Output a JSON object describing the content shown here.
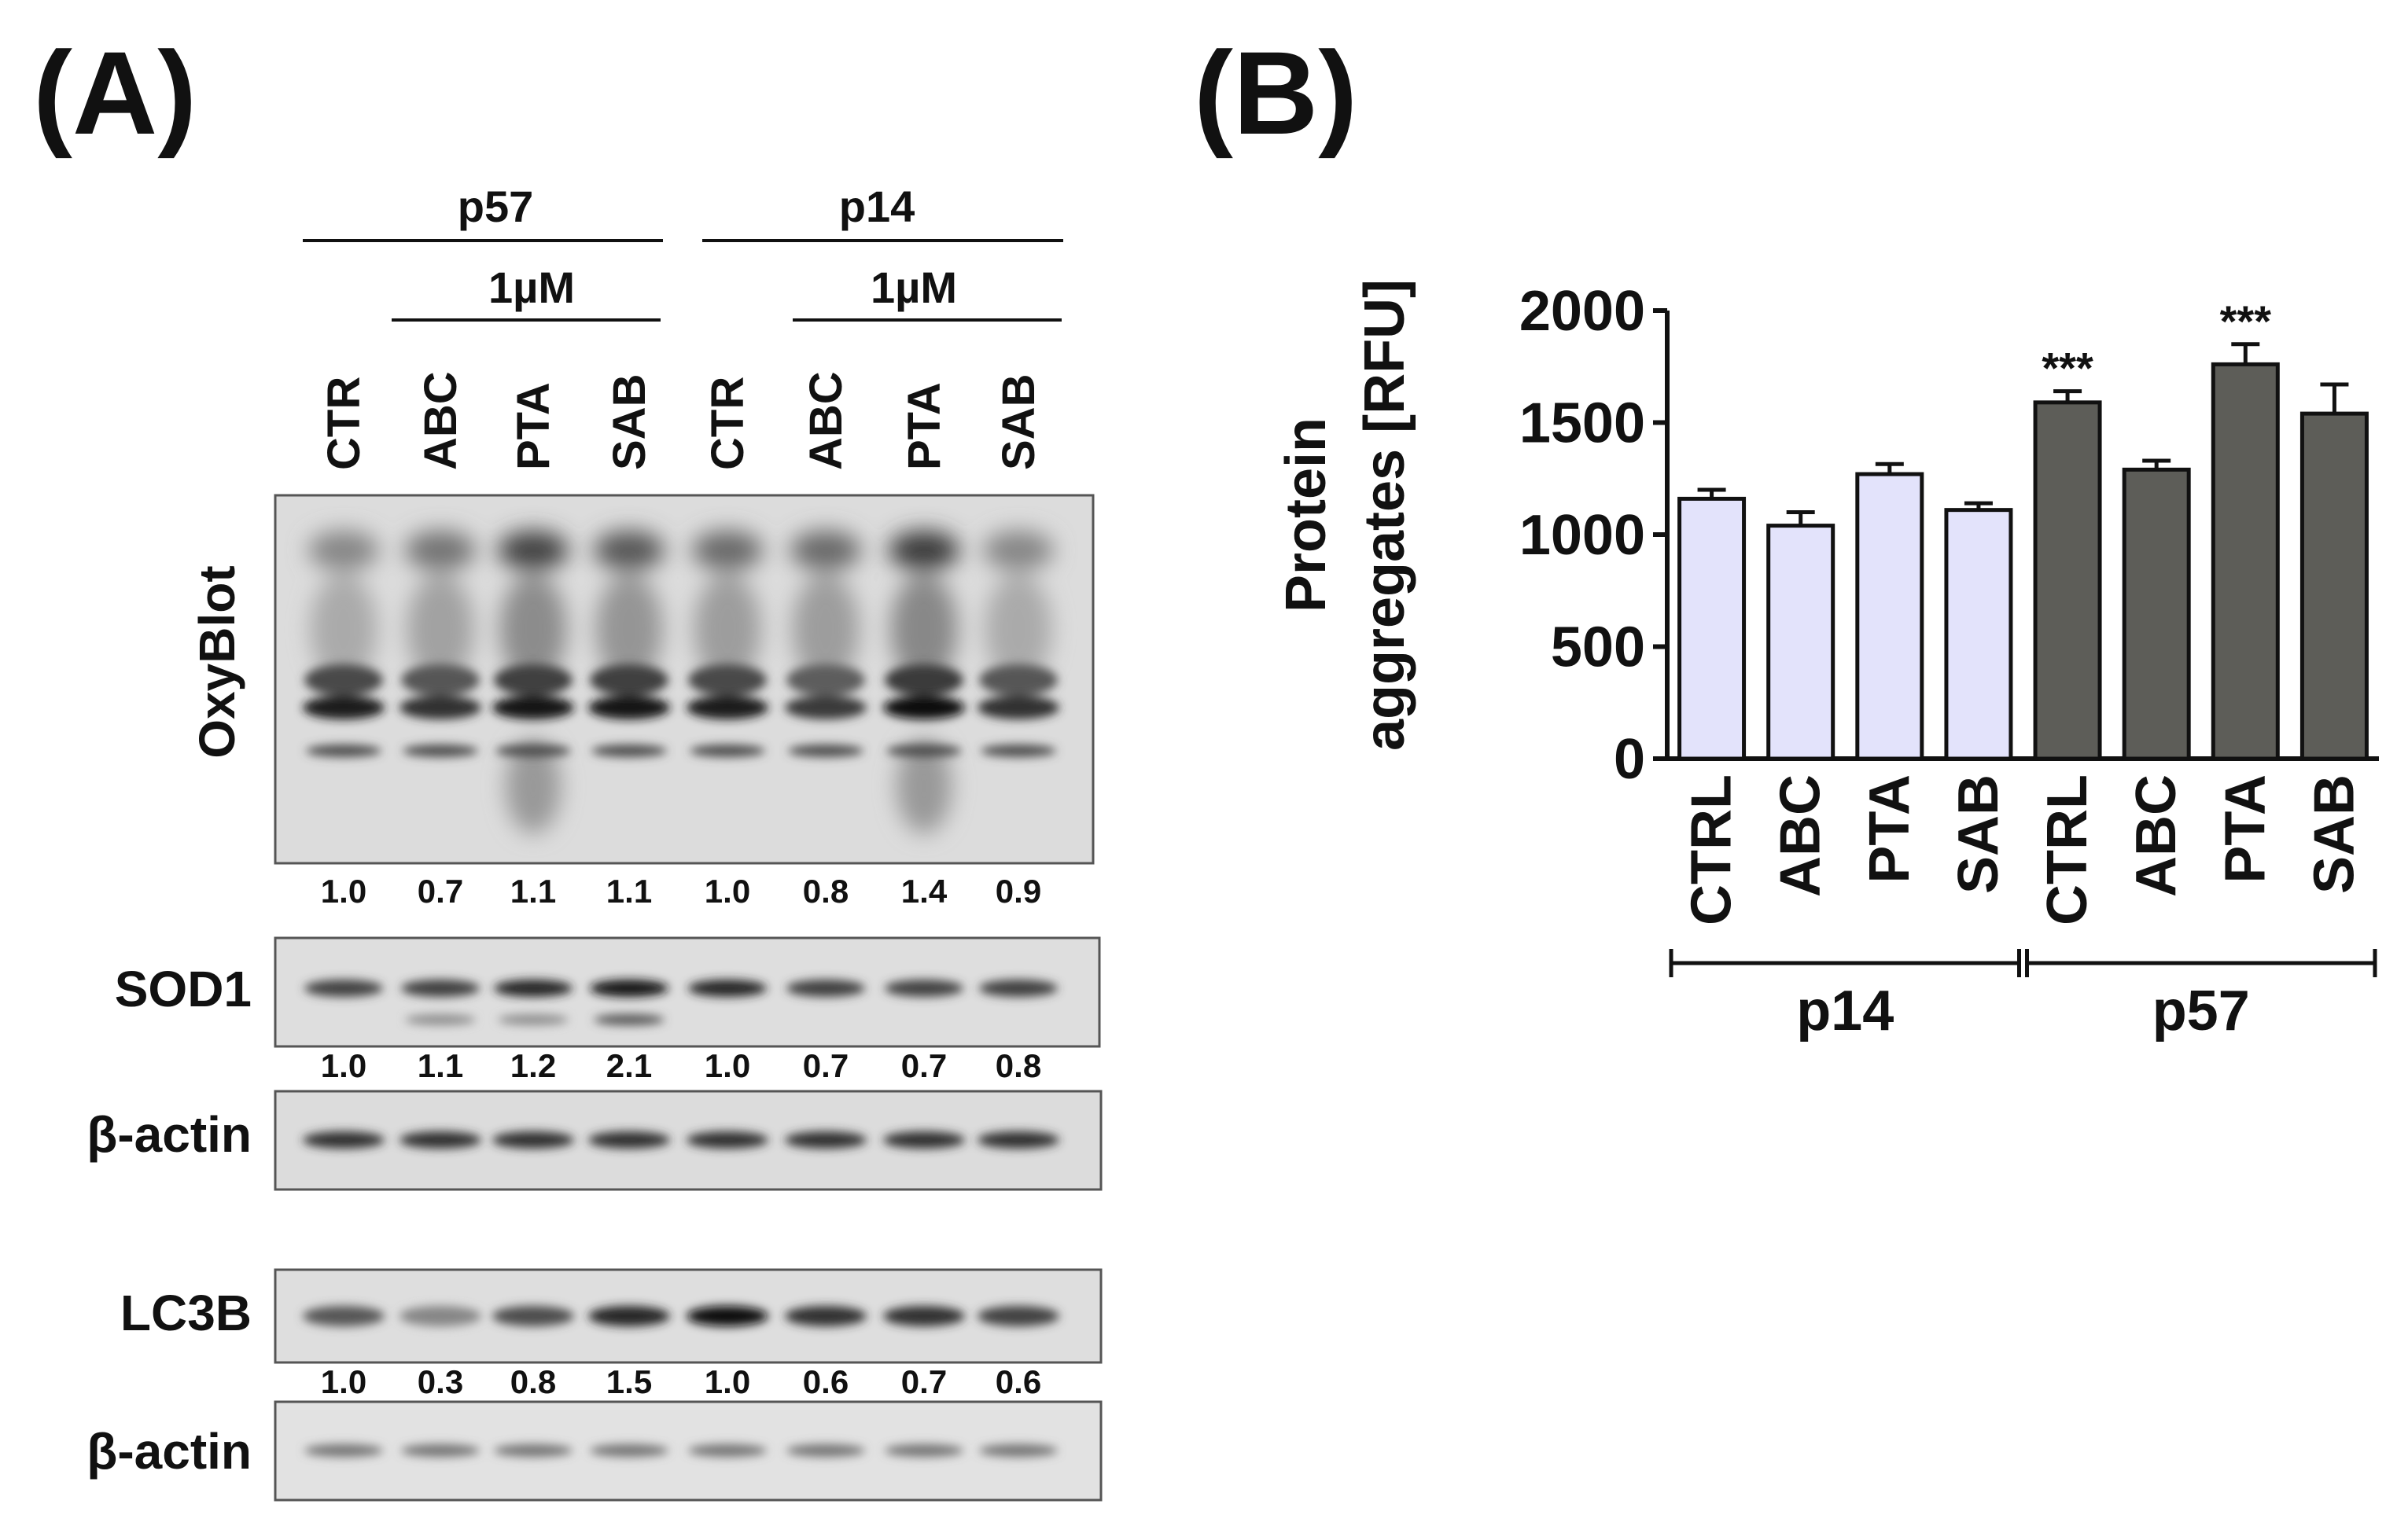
{
  "panel_a": {
    "letter": "(A)",
    "group_headers": [
      "p57",
      "p14"
    ],
    "dose_label": "1µM",
    "lanes": [
      "CTR",
      "ABC",
      "PTA",
      "SAB",
      "CTR",
      "ABC",
      "PTA",
      "SAB"
    ],
    "blots": [
      {
        "label": "OxyBlot",
        "quant": [
          "1.0",
          "0.7",
          "1.1",
          "1.1",
          "1.0",
          "0.8",
          "1.4",
          "0.9"
        ]
      },
      {
        "label": "SOD1",
        "quant": [
          "1.0",
          "1.1",
          "1.2",
          "2.1",
          "1.0",
          "0.7",
          "0.7",
          "0.8"
        ]
      },
      {
        "label": "β-actin",
        "quant": []
      },
      {
        "label": "LC3B",
        "quant": [
          "1.0",
          "0.3",
          "0.8",
          "1.5",
          "1.0",
          "0.6",
          "0.7",
          "0.6"
        ]
      },
      {
        "label": "β-actin",
        "quant": []
      }
    ]
  },
  "panel_b": {
    "letter": "(B)"
  },
  "chart_data": {
    "type": "bar",
    "categories": [
      "CTRL",
      "ABC",
      "PTA",
      "SAB",
      "CTRL",
      "ABC",
      "PTA",
      "SAB"
    ],
    "groups": [
      {
        "label": "p14",
        "categories": [
          0,
          1,
          2,
          3
        ]
      },
      {
        "label": "p57",
        "categories": [
          4,
          5,
          6,
          7
        ]
      }
    ],
    "values": [
      1160,
      1040,
      1270,
      1110,
      1590,
      1290,
      1760,
      1540
    ],
    "errors": [
      40,
      60,
      45,
      30,
      50,
      40,
      90,
      130
    ],
    "significance": [
      "",
      "",
      "",
      "",
      "***",
      "",
      "***",
      ""
    ],
    "bar_colors": [
      "#e3e3fb",
      "#e3e3fb",
      "#e3e3fb",
      "#e3e3fb",
      "#5d5d58",
      "#5d5d58",
      "#5d5d58",
      "#5d5d58"
    ],
    "ylabel_lines": [
      "Protein",
      "aggregates [RFU]"
    ],
    "ylim": [
      0,
      2000
    ],
    "yticks": [
      "0",
      "500",
      "1000",
      "1500",
      "2000"
    ],
    "grid": false,
    "legend": "none"
  }
}
